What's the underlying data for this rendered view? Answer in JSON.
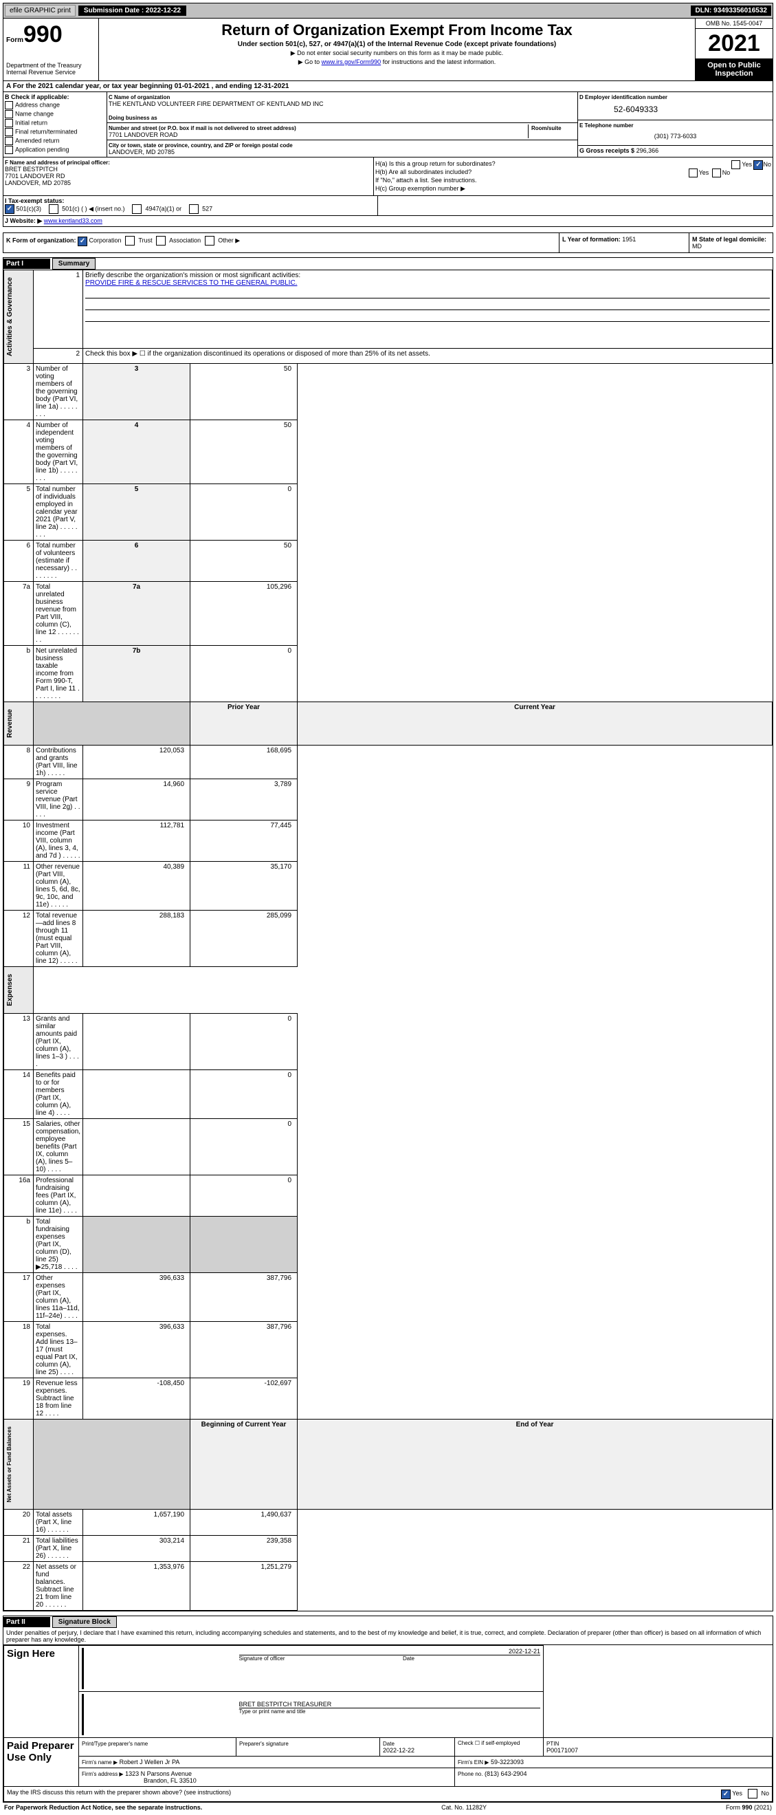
{
  "topbar": {
    "efile": "efile GRAPHIC print",
    "submission": "Submission Date : 2022-12-22",
    "dln": "DLN: 93493356016532"
  },
  "header": {
    "formword": "Form",
    "formnum": "990",
    "dept": "Department of the Treasury\nInternal Revenue Service",
    "title": "Return of Organization Exempt From Income Tax",
    "sub1": "Under section 501(c), 527, or 4947(a)(1) of the Internal Revenue Code (except private foundations)",
    "sub2_arrow": "▶ Do not enter social security numbers on this form as it may be made public.",
    "sub3_prefix": "▶ Go to ",
    "sub3_link": "www.irs.gov/Form990",
    "sub3_suffix": " for instructions and the latest information.",
    "omb": "OMB No. 1545-0047",
    "year": "2021",
    "open": "Open to Public Inspection"
  },
  "period": "For the 2021 calendar year, or tax year beginning 01-01-2021   , and ending 12-31-2021",
  "sectionB": {
    "label": "B Check if applicable:",
    "items": [
      "Address change",
      "Name change",
      "Initial return",
      "Final return/terminated",
      "Amended return",
      "Application pending"
    ]
  },
  "sectionC": {
    "nameLabel": "C Name of organization",
    "name": "THE KENTLAND VOLUNTEER FIRE DEPARTMENT OF KENTLAND MD INC",
    "dbaLabel": "Doing business as",
    "dba": "",
    "addrLabel": "Number and street (or P.O. box if mail is not delivered to street address)",
    "addr": "7701 LANDOVER ROAD",
    "roomLabel": "Room/suite",
    "cityLabel": "City or town, state or province, country, and ZIP or foreign postal code",
    "city": "LANDOVER, MD  20785"
  },
  "sectionD": {
    "label": "D Employer identification number",
    "ein": "52-6049333"
  },
  "sectionE": {
    "label": "E Telephone number",
    "phone": "(301) 773-6033"
  },
  "sectionG": {
    "label": "G Gross receipts $",
    "value": "296,366"
  },
  "sectionF": {
    "label": "F Name and address of principal officer:",
    "name": "BRET BESTPITCH",
    "addr1": "7701 LANDOVER RD",
    "addr2": "LANDOVER, MD  20785"
  },
  "sectionH": {
    "ha": "H(a)  Is this a group return for subordinates?",
    "hb": "H(b)  Are all subordinates included?",
    "hb_note": "If \"No,\" attach a list. See instructions.",
    "hc": "H(c)  Group exemption number ▶"
  },
  "sectionI": {
    "label": "I    Tax-exempt status:",
    "opts": [
      "501(c)(3)",
      "501(c) (  ) ◀ (insert no.)",
      "4947(a)(1) or",
      "527"
    ]
  },
  "sectionJ": {
    "label": "J    Website: ▶",
    "url": "www.kentland33.com"
  },
  "sectionK": {
    "label": "K Form of organization:",
    "opts": [
      "Corporation",
      "Trust",
      "Association",
      "Other ▶"
    ]
  },
  "sectionL": {
    "label": "L Year of formation:",
    "value": "1951"
  },
  "sectionM": {
    "label": "M State of legal domicile:",
    "value": "MD"
  },
  "part1": {
    "label": "Part I",
    "title": "Summary",
    "line1_label": "Briefly describe the organization's mission or most significant activities:",
    "line1_text": "PROVIDE FIRE & RESCUE SERVICES TO THE GENERAL PUBLIC.",
    "line2": "Check this box ▶ ☐  if the organization discontinued its operations or disposed of more than 25% of its net assets.",
    "sidebars": {
      "gov": "Activities & Governance",
      "rev": "Revenue",
      "exp": "Expenses",
      "net": "Net Assets or Fund Balances"
    },
    "rows_gov": [
      {
        "n": "3",
        "desc": "Number of voting members of the governing body (Part VI, line 1a)",
        "box": "3",
        "val": "50"
      },
      {
        "n": "4",
        "desc": "Number of independent voting members of the governing body (Part VI, line 1b)",
        "box": "4",
        "val": "50"
      },
      {
        "n": "5",
        "desc": "Total number of individuals employed in calendar year 2021 (Part V, line 2a)",
        "box": "5",
        "val": "0"
      },
      {
        "n": "6",
        "desc": "Total number of volunteers (estimate if necessary)",
        "box": "6",
        "val": "50"
      },
      {
        "n": "7a",
        "desc": "Total unrelated business revenue from Part VIII, column (C), line 12",
        "box": "7a",
        "val": "105,296"
      },
      {
        "n": "b",
        "desc": "Net unrelated business taxable income from Form 990-T, Part I, line 11",
        "box": "7b",
        "val": "0"
      }
    ],
    "col_prior": "Prior Year",
    "col_current": "Current Year",
    "rows_rev": [
      {
        "n": "8",
        "desc": "Contributions and grants (Part VIII, line 1h)",
        "prior": "120,053",
        "curr": "168,695"
      },
      {
        "n": "9",
        "desc": "Program service revenue (Part VIII, line 2g)",
        "prior": "14,960",
        "curr": "3,789"
      },
      {
        "n": "10",
        "desc": "Investment income (Part VIII, column (A), lines 3, 4, and 7d )",
        "prior": "112,781",
        "curr": "77,445"
      },
      {
        "n": "11",
        "desc": "Other revenue (Part VIII, column (A), lines 5, 6d, 8c, 9c, 10c, and 11e)",
        "prior": "40,389",
        "curr": "35,170"
      },
      {
        "n": "12",
        "desc": "Total revenue—add lines 8 through 11 (must equal Part VIII, column (A), line 12)",
        "prior": "288,183",
        "curr": "285,099"
      }
    ],
    "rows_exp": [
      {
        "n": "13",
        "desc": "Grants and similar amounts paid (Part IX, column (A), lines 1–3 )",
        "prior": "",
        "curr": "0"
      },
      {
        "n": "14",
        "desc": "Benefits paid to or for members (Part IX, column (A), line 4)",
        "prior": "",
        "curr": "0"
      },
      {
        "n": "15",
        "desc": "Salaries, other compensation, employee benefits (Part IX, column (A), lines 5–10)",
        "prior": "",
        "curr": "0"
      },
      {
        "n": "16a",
        "desc": "Professional fundraising fees (Part IX, column (A), line 11e)",
        "prior": "",
        "curr": "0"
      },
      {
        "n": "b",
        "desc": "Total fundraising expenses (Part IX, column (D), line 25) ▶25,718",
        "prior": "GRAY",
        "curr": "GRAY"
      },
      {
        "n": "17",
        "desc": "Other expenses (Part IX, column (A), lines 11a–11d, 11f–24e)",
        "prior": "396,633",
        "curr": "387,796"
      },
      {
        "n": "18",
        "desc": "Total expenses. Add lines 13–17 (must equal Part IX, column (A), line 25)",
        "prior": "396,633",
        "curr": "387,796"
      },
      {
        "n": "19",
        "desc": "Revenue less expenses. Subtract line 18 from line 12",
        "prior": "-108,450",
        "curr": "-102,697"
      }
    ],
    "col_begin": "Beginning of Current Year",
    "col_end": "End of Year",
    "rows_net": [
      {
        "n": "20",
        "desc": "Total assets (Part X, line 16)",
        "prior": "1,657,190",
        "curr": "1,490,637"
      },
      {
        "n": "21",
        "desc": "Total liabilities (Part X, line 26)",
        "prior": "303,214",
        "curr": "239,358"
      },
      {
        "n": "22",
        "desc": "Net assets or fund balances. Subtract line 21 from line 20",
        "prior": "1,353,976",
        "curr": "1,251,279"
      }
    ]
  },
  "part2": {
    "label": "Part II",
    "title": "Signature Block",
    "declare": "Under penalties of perjury, I declare that I have examined this return, including accompanying schedules and statements, and to the best of my knowledge and belief, it is true, correct, and complete. Declaration of preparer (other than officer) is based on all information of which preparer has any knowledge.",
    "sign_here": "Sign Here",
    "sig_officer_label": "Signature of officer",
    "date_label": "Date",
    "sig_date": "2022-12-21",
    "name_title": "BRET BESTPITCH TREASURER",
    "name_title_label": "Type or print name and title",
    "paid": "Paid Preparer Use Only",
    "prep_name_label": "Print/Type preparer's name",
    "prep_sig_label": "Preparer's signature",
    "prep_date_label": "Date",
    "prep_date": "2022-12-22",
    "self_emp": "Check ☐ if self-employed",
    "ptin_label": "PTIN",
    "ptin": "P00171007",
    "firm_name_label": "Firm's name     ▶",
    "firm_name": "Robert J Wellen Jr PA",
    "firm_ein_label": "Firm's EIN ▶",
    "firm_ein": "59-3223093",
    "firm_addr_label": "Firm's address ▶",
    "firm_addr1": "1323 N Parsons Avenue",
    "firm_addr2": "Brandon, FL  33510",
    "phone_label": "Phone no.",
    "phone": "(813) 643-2904",
    "may_irs": "May the IRS discuss this return with the preparer shown above? (see instructions)",
    "yes": "Yes",
    "no": "No"
  },
  "footer": {
    "left": "For Paperwork Reduction Act Notice, see the separate instructions.",
    "mid": "Cat. No. 11282Y",
    "right": "Form 990 (2021)"
  }
}
